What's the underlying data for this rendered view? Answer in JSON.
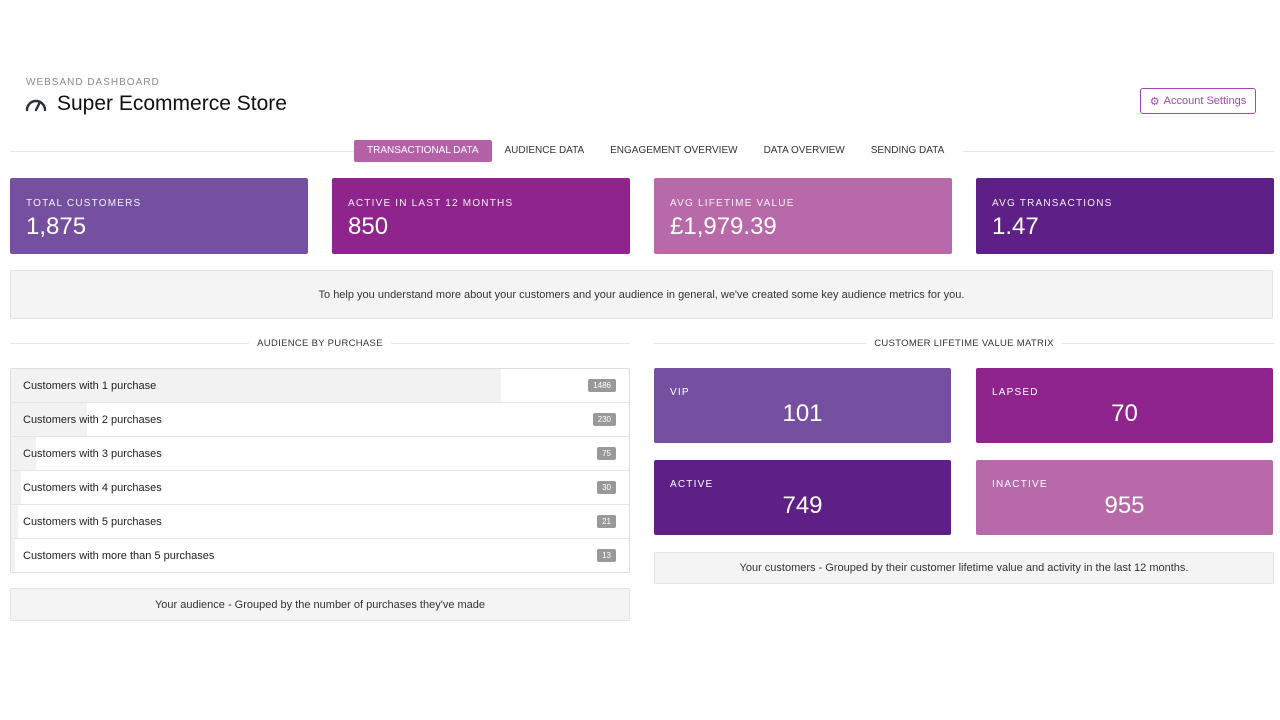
{
  "header": {
    "eyebrow": "WEBSAND DASHBOARD",
    "title": "Super Ecommerce Store",
    "settings_label": "Account Settings"
  },
  "tabs": [
    {
      "label": "TRANSACTIONAL DATA",
      "active": true
    },
    {
      "label": "AUDIENCE DATA",
      "active": false
    },
    {
      "label": "ENGAGEMENT OVERVIEW",
      "active": false
    },
    {
      "label": "DATA OVERVIEW",
      "active": false
    },
    {
      "label": "SENDING DATA",
      "active": false
    }
  ],
  "kpis": [
    {
      "label": "TOTAL CUSTOMERS",
      "value": "1,875",
      "color": "#7650a0"
    },
    {
      "label": "ACTIVE IN LAST 12 MONTHS",
      "value": "850",
      "color": "#8f258c"
    },
    {
      "label": "AVG LIFETIME VALUE",
      "value": "£1,979.39",
      "color": "#b769aa"
    },
    {
      "label": "AVG TRANSACTIONS",
      "value": "1.47",
      "color": "#5e1f86"
    }
  ],
  "info_text": "To help you understand more about your customers and your audience in general, we've created some key audience metrics for you.",
  "audience": {
    "title": "AUDIENCE BY PURCHASE",
    "total": 1875,
    "rows": [
      {
        "label": "Customers with 1 purchase",
        "count": "1486",
        "value": 1486
      },
      {
        "label": "Customers with 2 purchases",
        "count": "230",
        "value": 230
      },
      {
        "label": "Customers with 3 purchases",
        "count": "75",
        "value": 75
      },
      {
        "label": "Customers with 4 purchases",
        "count": "30",
        "value": 30
      },
      {
        "label": "Customers with 5 purchases",
        "count": "21",
        "value": 21
      },
      {
        "label": "Customers with more than 5 purchases",
        "count": "13",
        "value": 13
      }
    ],
    "caption": "Your audience - Grouped by the number of purchases they've made"
  },
  "matrix": {
    "title": "CUSTOMER LIFETIME VALUE MATRIX",
    "cells": [
      {
        "label": "VIP",
        "value": "101",
        "color": "#7650a0"
      },
      {
        "label": "LAPSED",
        "value": "70",
        "color": "#8f258c"
      },
      {
        "label": "ACTIVE",
        "value": "749",
        "color": "#5e1f86"
      },
      {
        "label": "INACTIVE",
        "value": "955",
        "color": "#b769aa"
      }
    ],
    "caption": "Your customers - Grouped by their customer lifetime value and activity in the last 12 months."
  },
  "icons": {
    "brand": "gauge-icon",
    "settings": "gear-icon"
  }
}
